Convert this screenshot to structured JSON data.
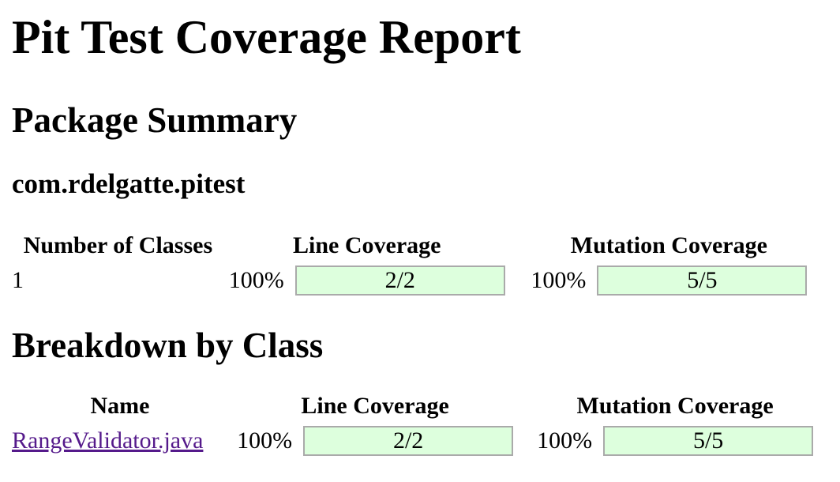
{
  "report": {
    "title": "Pit Test Coverage Report"
  },
  "package_summary": {
    "heading": "Package Summary",
    "package_name": "com.rdelgatte.pitest",
    "table": {
      "columns": [
        "Number of Classes",
        "Line Coverage",
        "Mutation Coverage"
      ],
      "row": {
        "number_of_classes": "1",
        "line_coverage": {
          "percent": "100%",
          "percent_value": 100,
          "legend": "2/2"
        },
        "mutation_coverage": {
          "percent": "100%",
          "percent_value": 100,
          "legend": "5/5"
        }
      }
    }
  },
  "breakdown": {
    "heading": "Breakdown by Class",
    "table": {
      "columns": [
        "Name",
        "Line Coverage",
        "Mutation Coverage"
      ],
      "rows": [
        {
          "name": "RangeValidator.java",
          "line_coverage": {
            "percent": "100%",
            "percent_value": 100,
            "legend": "2/2"
          },
          "mutation_coverage": {
            "percent": "100%",
            "percent_value": 100,
            "legend": "5/5"
          }
        }
      ]
    }
  },
  "colors": {
    "covered_fill": "#DDFFDD",
    "uncovered_fill": "#FFAAAA",
    "bar_border": "#AAAAAA",
    "link": "#551A8B",
    "text": "#000000",
    "background": "#FFFFFF"
  }
}
